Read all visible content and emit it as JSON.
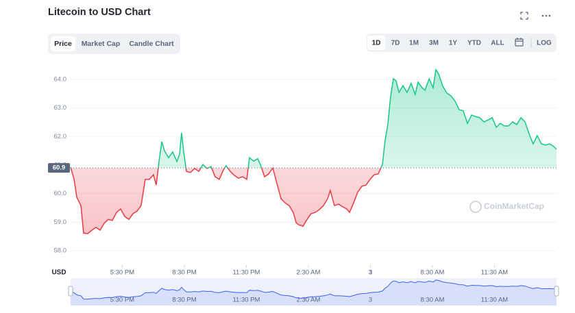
{
  "header": {
    "title": "Litecoin to USD Chart",
    "tabs": [
      "Price",
      "Market Cap",
      "Candle Chart"
    ],
    "active_tab": 0,
    "ranges": [
      "1D",
      "7D",
      "1M",
      "3M",
      "1Y",
      "YTD",
      "ALL"
    ],
    "active_range": 0,
    "log_button": "LOG"
  },
  "chart_data": {
    "type": "line",
    "currency_label": "USD",
    "watermark": "CoinMarketCap",
    "baseline": {
      "value": 60.9,
      "label": "60.9"
    },
    "up_color": "#16c784",
    "down_color": "#ea3943",
    "navigator_color": "#3861fb",
    "xlim": [
      0,
      23.5
    ],
    "ylim": [
      57.5,
      64.5
    ],
    "yticks": [
      {
        "value": 58,
        "label": "58.0"
      },
      {
        "value": 59,
        "label": "59.0"
      },
      {
        "value": 60,
        "label": "60.0"
      },
      {
        "value": 61,
        "label": "61.0"
      },
      {
        "value": 62,
        "label": "62.0"
      },
      {
        "value": 63,
        "label": "63.0"
      },
      {
        "value": 64,
        "label": "64.0"
      }
    ],
    "xticks": [
      {
        "value": 2.5,
        "label": "5:30 PM"
      },
      {
        "value": 5.5,
        "label": "8:30 PM"
      },
      {
        "value": 8.5,
        "label": "11:30 PM"
      },
      {
        "value": 11.5,
        "label": "2:30 AM"
      },
      {
        "value": 14.5,
        "label": "3"
      },
      {
        "value": 17.5,
        "label": "8:30 AM"
      },
      {
        "value": 20.5,
        "label": "11:30 AM"
      }
    ],
    "x": [
      0,
      0.17,
      0.3,
      0.5,
      0.63,
      0.83,
      1.03,
      1.23,
      1.43,
      1.62,
      1.82,
      2.02,
      2.22,
      2.42,
      2.62,
      2.82,
      3.02,
      3.22,
      3.41,
      3.61,
      3.81,
      4.01,
      4.14,
      4.28,
      4.41,
      4.54,
      4.74,
      4.94,
      5.14,
      5.27,
      5.37,
      5.47,
      5.6,
      5.8,
      6.0,
      6.2,
      6.4,
      6.6,
      6.79,
      6.99,
      7.19,
      7.39,
      7.52,
      7.72,
      7.92,
      8.12,
      8.32,
      8.52,
      8.65,
      8.85,
      9.05,
      9.18,
      9.38,
      9.58,
      9.78,
      9.98,
      10.18,
      10.37,
      10.57,
      10.77,
      10.91,
      11.04,
      11.24,
      11.44,
      11.63,
      11.83,
      12.03,
      12.23,
      12.43,
      12.56,
      12.76,
      12.96,
      13.16,
      13.36,
      13.49,
      13.69,
      13.89,
      14.09,
      14.29,
      14.48,
      14.68,
      14.88,
      15.08,
      15.21,
      15.35,
      15.48,
      15.61,
      15.74,
      15.88,
      16.08,
      16.27,
      16.47,
      16.67,
      16.8,
      17.0,
      17.14,
      17.34,
      17.53,
      17.67,
      17.8,
      18.0,
      18.2,
      18.4,
      18.6,
      18.79,
      18.99,
      19.19,
      19.39,
      19.59,
      19.79,
      19.99,
      20.19,
      20.39,
      20.59,
      20.78,
      20.98,
      21.18,
      21.38,
      21.58,
      21.78,
      21.98,
      22.17,
      22.37,
      22.57,
      22.77,
      22.97,
      23.17,
      23.37,
      23.5
    ],
    "values": [
      60.93,
      60.5,
      59.87,
      59.58,
      58.62,
      58.6,
      58.72,
      58.82,
      58.72,
      58.96,
      59.1,
      59.06,
      59.34,
      59.46,
      59.2,
      59.1,
      59.3,
      59.39,
      59.58,
      60.5,
      60.5,
      60.66,
      60.3,
      61.14,
      61.82,
      61.5,
      61.26,
      61.46,
      61.12,
      61.38,
      62.13,
      61.46,
      60.78,
      60.74,
      60.88,
      60.78,
      61.02,
      60.88,
      60.95,
      60.59,
      60.5,
      60.83,
      60.98,
      60.78,
      60.64,
      60.54,
      60.59,
      60.5,
      61.26,
      61.14,
      61.22,
      61.02,
      60.59,
      60.69,
      60.9,
      60.35,
      59.82,
      59.68,
      59.58,
      59.34,
      58.98,
      58.91,
      58.86,
      59.1,
      59.3,
      59.34,
      59.44,
      59.58,
      59.82,
      60.11,
      59.58,
      59.63,
      59.54,
      59.46,
      59.34,
      59.68,
      60.06,
      60.26,
      60.3,
      60.5,
      60.66,
      60.69,
      61.02,
      61.86,
      62.46,
      63.42,
      64.02,
      63.95,
      63.54,
      63.78,
      63.54,
      63.86,
      63.47,
      63.9,
      63.71,
      63.62,
      64.02,
      63.71,
      64.34,
      64.19,
      63.76,
      63.52,
      63.42,
      63.23,
      62.94,
      62.9,
      62.46,
      62.75,
      62.7,
      62.66,
      62.51,
      62.58,
      62.66,
      62.32,
      62.46,
      62.37,
      62.37,
      62.51,
      62.42,
      62.66,
      62.51,
      62.1,
      61.74,
      62.03,
      61.74,
      61.7,
      61.74,
      61.65,
      61.55
    ]
  }
}
